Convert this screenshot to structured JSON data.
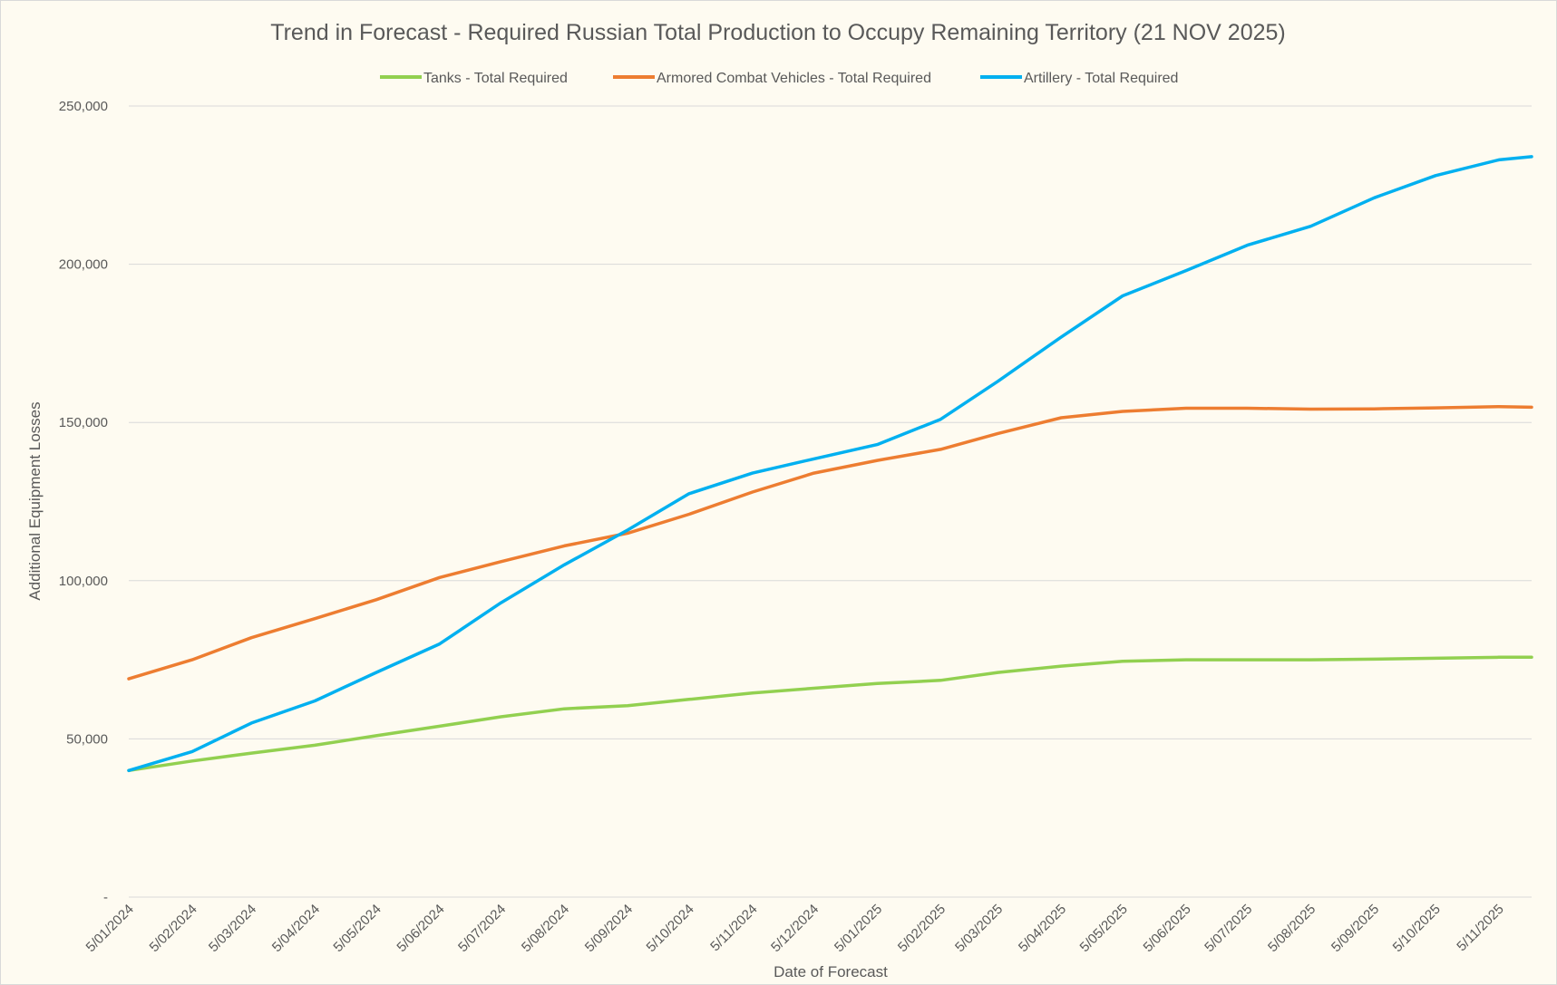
{
  "chart_data": {
    "type": "line",
    "title": "Trend in Forecast - Required Russian Total Production to Occupy Remaining Territory (21 NOV 2025)",
    "xlabel": "Date of Forecast",
    "ylabel": "Additional Equipment Losses",
    "ylim": [
      0,
      250000
    ],
    "yticks": [
      0,
      50000,
      100000,
      150000,
      200000,
      250000
    ],
    "ytick_labels": [
      "-",
      "50,000",
      "100,000",
      "150,000",
      "200,000",
      "250,000"
    ],
    "x_tick_labels": [
      "5/01/2024",
      "5/02/2024",
      "5/03/2024",
      "5/04/2024",
      "5/05/2024",
      "5/06/2024",
      "5/07/2024",
      "5/08/2024",
      "5/09/2024",
      "5/10/2024",
      "5/11/2024",
      "5/12/2024",
      "5/01/2025",
      "5/02/2025",
      "5/03/2025",
      "5/04/2025",
      "5/05/2025",
      "5/06/2025",
      "5/07/2025",
      "5/08/2025",
      "5/09/2025",
      "5/10/2025",
      "5/11/2025"
    ],
    "x_start": "5/01/2024",
    "x_end": "21/11/2025",
    "grid": "horizontal",
    "legend_position": "top",
    "series": [
      {
        "name": "Tanks - Total Required",
        "color": "#92d050",
        "points": [
          [
            "5/01/2024",
            40000
          ],
          [
            "5/02/2024",
            43000
          ],
          [
            "5/03/2024",
            45500
          ],
          [
            "5/04/2024",
            48000
          ],
          [
            "5/05/2024",
            51000
          ],
          [
            "5/06/2024",
            54000
          ],
          [
            "5/07/2024",
            57000
          ],
          [
            "5/08/2024",
            59500
          ],
          [
            "5/09/2024",
            60500
          ],
          [
            "5/10/2024",
            62500
          ],
          [
            "5/11/2024",
            64500
          ],
          [
            "5/12/2024",
            66000
          ],
          [
            "5/01/2025",
            67500
          ],
          [
            "5/02/2025",
            68500
          ],
          [
            "5/03/2025",
            71000
          ],
          [
            "5/04/2025",
            73000
          ],
          [
            "5/05/2025",
            74500
          ],
          [
            "5/06/2025",
            75000
          ],
          [
            "5/07/2025",
            75000
          ],
          [
            "5/08/2025",
            75000
          ],
          [
            "5/09/2025",
            75200
          ],
          [
            "5/10/2025",
            75500
          ],
          [
            "5/11/2025",
            75800
          ],
          [
            "21/11/2025",
            75800
          ]
        ]
      },
      {
        "name": "Armored Combat Vehicles - Total Required",
        "color": "#ed7d31",
        "points": [
          [
            "5/01/2024",
            69000
          ],
          [
            "5/02/2024",
            75000
          ],
          [
            "5/03/2024",
            82000
          ],
          [
            "5/04/2024",
            88000
          ],
          [
            "5/05/2024",
            94000
          ],
          [
            "5/06/2024",
            101000
          ],
          [
            "5/07/2024",
            106000
          ],
          [
            "5/08/2024",
            111000
          ],
          [
            "5/09/2024",
            115000
          ],
          [
            "5/10/2024",
            121000
          ],
          [
            "5/11/2024",
            128000
          ],
          [
            "5/12/2024",
            134000
          ],
          [
            "5/01/2025",
            138000
          ],
          [
            "5/02/2025",
            141500
          ],
          [
            "5/03/2025",
            146500
          ],
          [
            "5/04/2025",
            151500
          ],
          [
            "5/05/2025",
            153500
          ],
          [
            "5/06/2025",
            154500
          ],
          [
            "5/07/2025",
            154500
          ],
          [
            "5/08/2025",
            154200
          ],
          [
            "5/09/2025",
            154300
          ],
          [
            "5/10/2025",
            154600
          ],
          [
            "5/11/2025",
            155000
          ],
          [
            "21/11/2025",
            154800
          ]
        ]
      },
      {
        "name": "Artillery - Total Required",
        "color": "#00b0f0",
        "points": [
          [
            "5/01/2024",
            40000
          ],
          [
            "5/02/2024",
            46000
          ],
          [
            "5/03/2024",
            55000
          ],
          [
            "5/04/2024",
            62000
          ],
          [
            "5/05/2024",
            71000
          ],
          [
            "5/06/2024",
            80000
          ],
          [
            "5/07/2024",
            93000
          ],
          [
            "5/08/2024",
            105000
          ],
          [
            "5/09/2024",
            116000
          ],
          [
            "5/10/2024",
            127500
          ],
          [
            "5/11/2024",
            134000
          ],
          [
            "5/12/2024",
            138500
          ],
          [
            "5/01/2025",
            143000
          ],
          [
            "5/02/2025",
            151000
          ],
          [
            "5/03/2025",
            163000
          ],
          [
            "5/04/2025",
            177000
          ],
          [
            "5/05/2025",
            190000
          ],
          [
            "5/06/2025",
            198000
          ],
          [
            "5/07/2025",
            206000
          ],
          [
            "5/08/2025",
            212000
          ],
          [
            "5/09/2025",
            221000
          ],
          [
            "5/10/2025",
            228000
          ],
          [
            "5/11/2025",
            233000
          ],
          [
            "21/11/2025",
            234000
          ]
        ]
      }
    ]
  }
}
